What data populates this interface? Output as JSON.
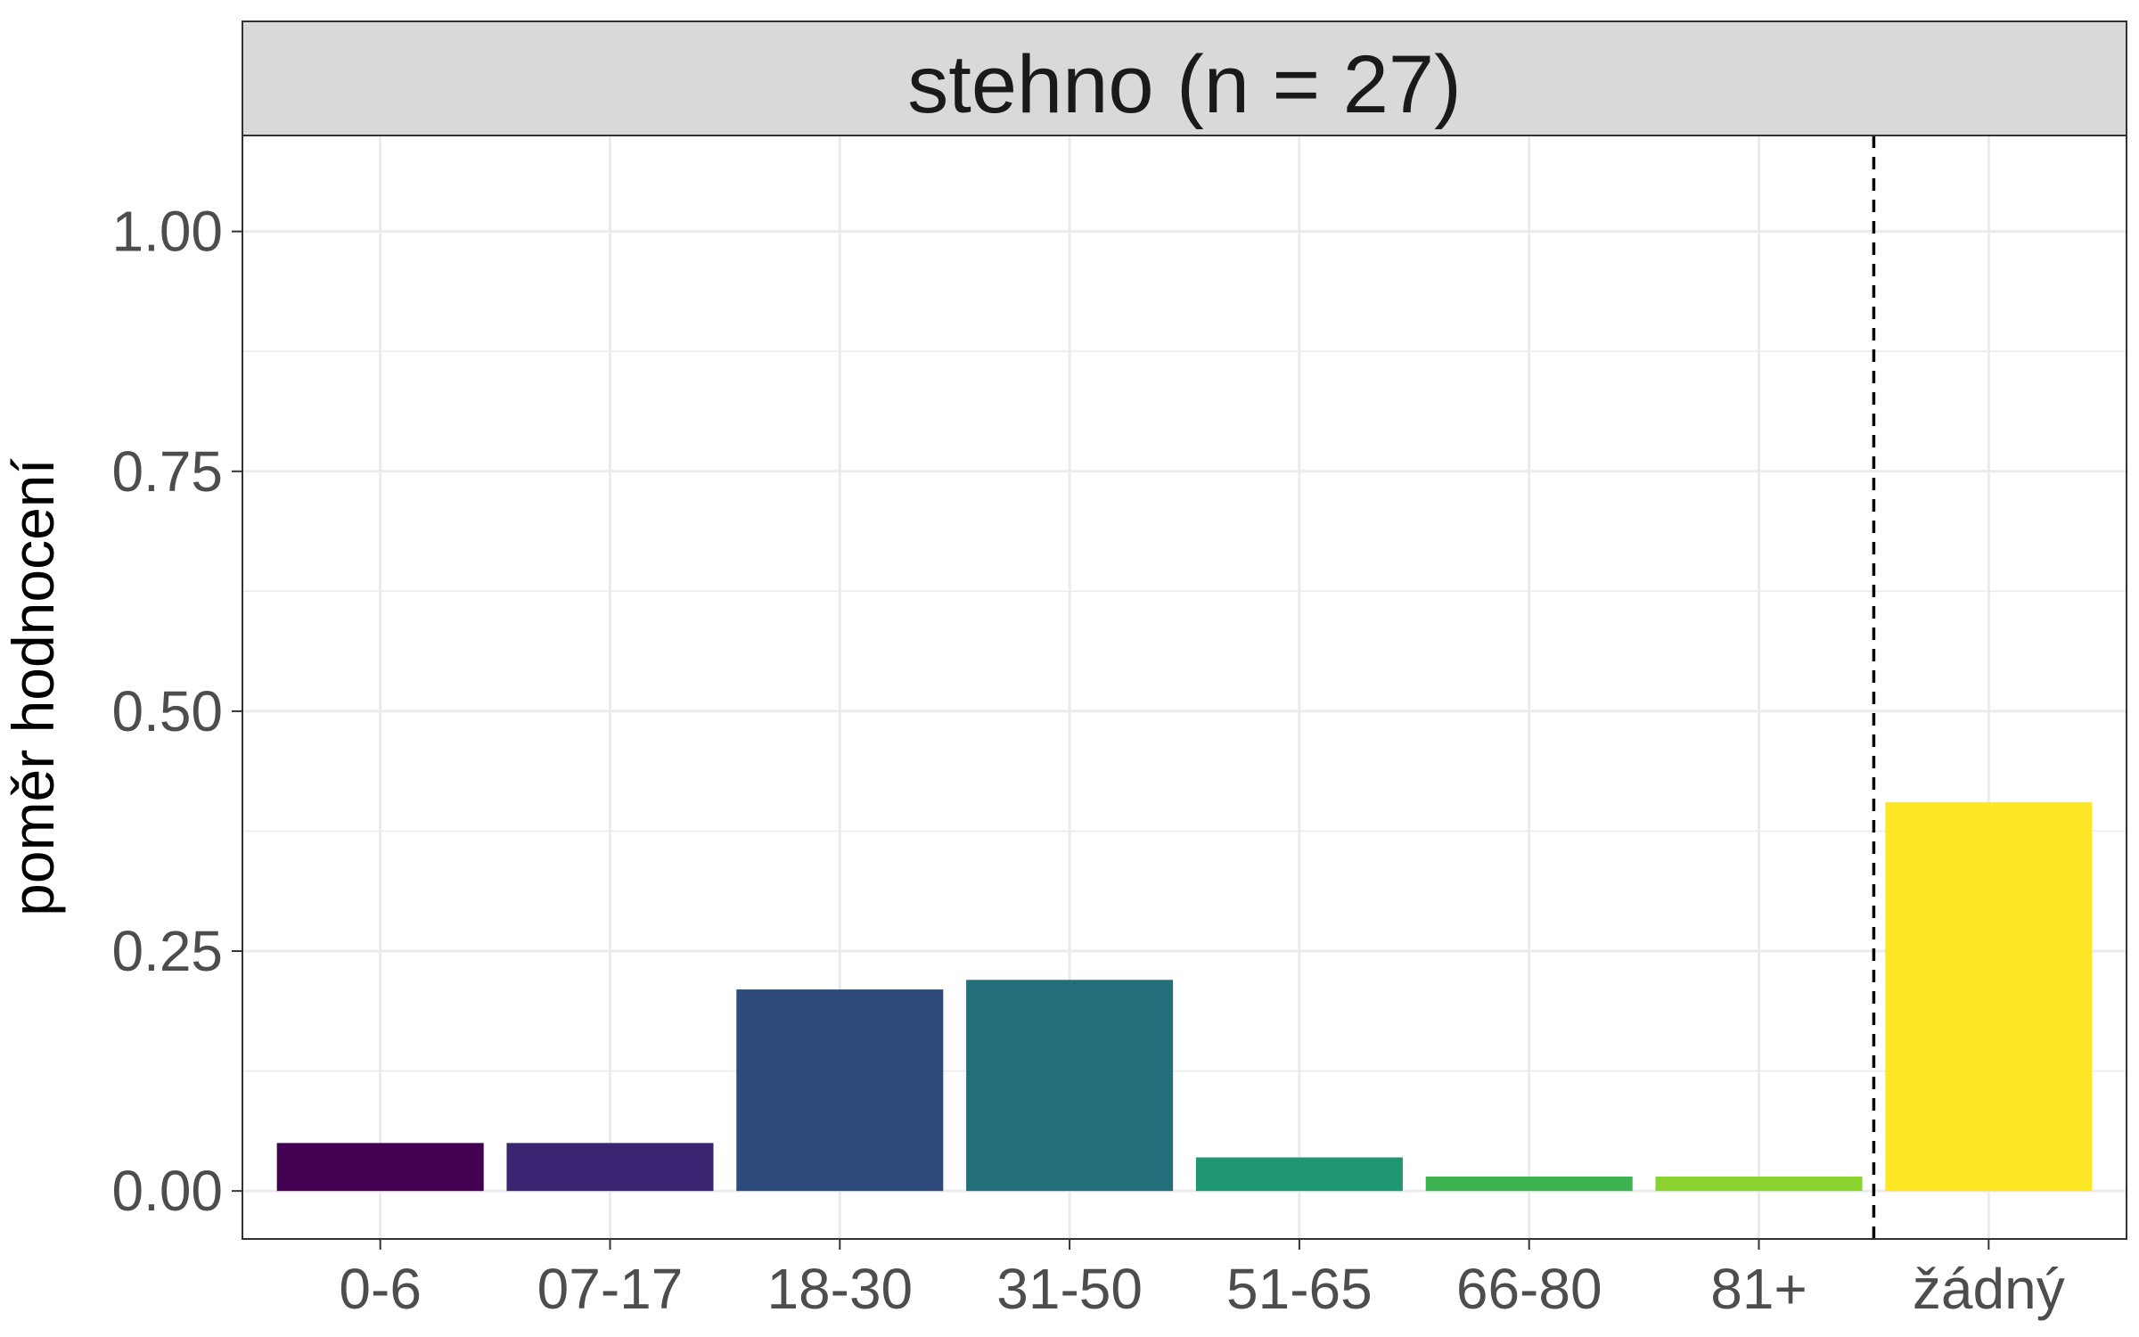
{
  "chart_data": {
    "type": "bar",
    "title": "stehno (n = 27)",
    "xlabel": "",
    "ylabel": "poměr hodnocení",
    "categories": [
      "0-6",
      "07-17",
      "18-30",
      "31-50",
      "51-65",
      "66-80",
      "81+",
      "žádný"
    ],
    "values": [
      0.05,
      0.05,
      0.21,
      0.22,
      0.035,
      0.015,
      0.015,
      0.405
    ],
    "colors": [
      "#440154",
      "#3B2471",
      "#2D4A7B",
      "#226F7B",
      "#1F9672",
      "#3DB34F",
      "#8AD22E",
      "#FDE725"
    ],
    "ylim": [
      -0.05,
      1.1
    ],
    "yticks": [
      "0.00",
      "0.25",
      "0.50",
      "0.75",
      "1.00"
    ],
    "ytick_values": [
      0,
      0.25,
      0.5,
      0.75,
      1.0
    ],
    "reference_line": {
      "position": "between 81+ and žádný",
      "style": "dashed"
    },
    "grid": true,
    "legend": "none"
  }
}
